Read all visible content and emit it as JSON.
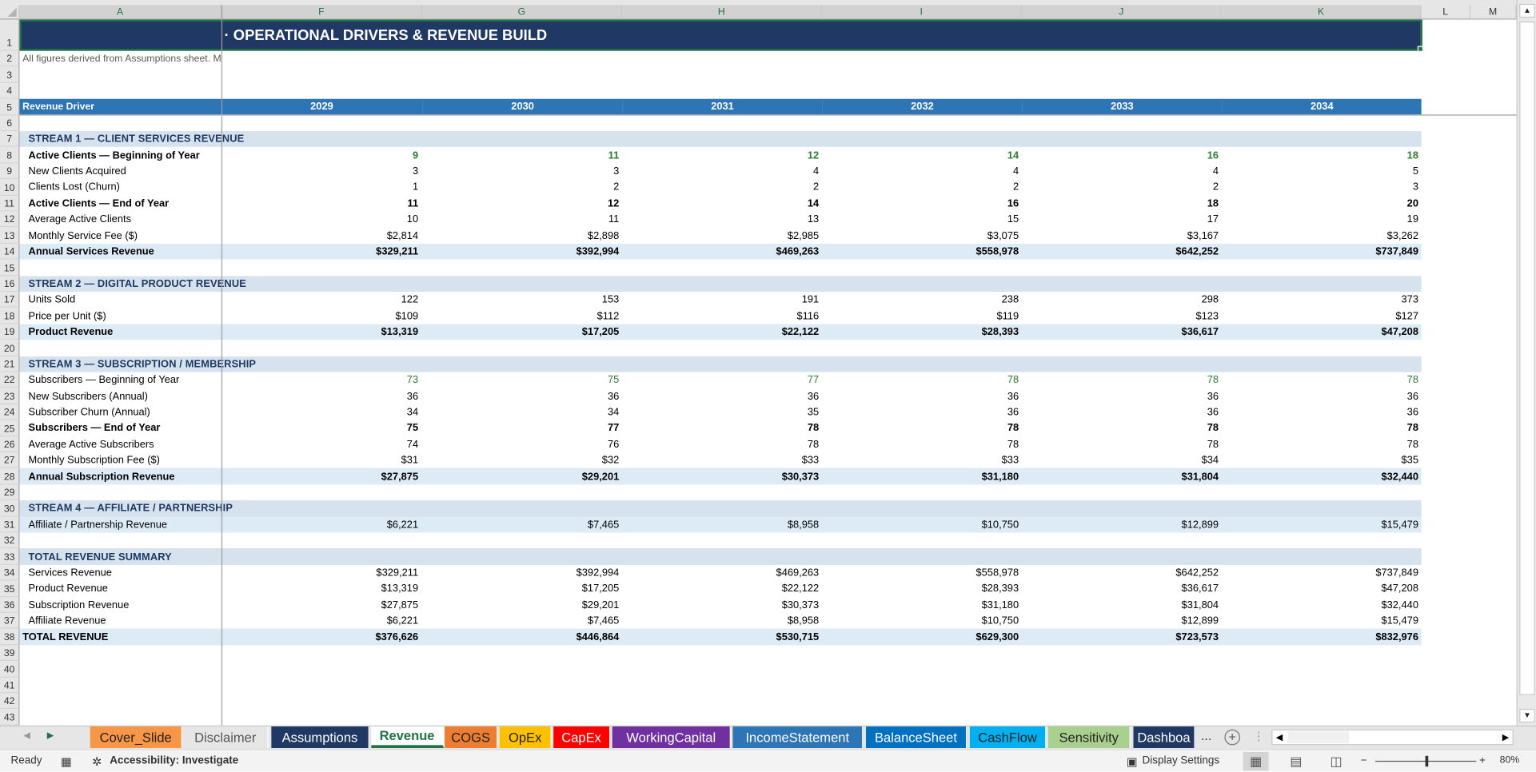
{
  "column_headers": [
    "A",
    "F",
    "G",
    "H",
    "I",
    "J",
    "K",
    "L",
    "M"
  ],
  "title": "· OPERATIONAL DRIVERS & REVENUE BUILD",
  "note": "All figures derived from Assumptions sheet. M",
  "header": {
    "label": "Revenue Driver",
    "years": [
      "2029",
      "2030",
      "2031",
      "2032",
      "2033",
      "2034"
    ]
  },
  "rows": [
    {
      "n": "1",
      "type": "title"
    },
    {
      "n": "2",
      "type": "note"
    },
    {
      "n": "3",
      "type": "empty"
    },
    {
      "n": "4",
      "type": "empty"
    },
    {
      "n": "5",
      "type": "header"
    },
    {
      "n": "6",
      "type": "empty"
    },
    {
      "n": "7",
      "type": "section",
      "label": "STREAM 1 — CLIENT SERVICES REVENUE"
    },
    {
      "n": "8",
      "type": "bold green",
      "label": "Active Clients — Beginning of Year",
      "values": [
        "9",
        "11",
        "12",
        "14",
        "16",
        "18"
      ]
    },
    {
      "n": "9",
      "type": "normal",
      "label": "New Clients Acquired",
      "values": [
        "3",
        "3",
        "4",
        "4",
        "4",
        "5"
      ]
    },
    {
      "n": "10",
      "type": "normal",
      "label": "Clients Lost (Churn)",
      "values": [
        "1",
        "2",
        "2",
        "2",
        "2",
        "3"
      ]
    },
    {
      "n": "11",
      "type": "bold",
      "label": "Active Clients — End of Year",
      "values": [
        "11",
        "12",
        "14",
        "16",
        "18",
        "20"
      ]
    },
    {
      "n": "12",
      "type": "normal",
      "label": "Average Active Clients",
      "values": [
        "10",
        "11",
        "13",
        "15",
        "17",
        "19"
      ]
    },
    {
      "n": "13",
      "type": "normal",
      "label": "Monthly Service Fee ($)",
      "values": [
        "$2,814",
        "$2,898",
        "$2,985",
        "$3,075",
        "$3,167",
        "$3,262"
      ]
    },
    {
      "n": "14",
      "type": "total",
      "label": "Annual Services Revenue",
      "values": [
        "$329,211",
        "$392,994",
        "$469,263",
        "$558,978",
        "$642,252",
        "$737,849"
      ]
    },
    {
      "n": "15",
      "type": "empty"
    },
    {
      "n": "16",
      "type": "section",
      "label": "STREAM 2 — DIGITAL PRODUCT REVENUE"
    },
    {
      "n": "17",
      "type": "normal",
      "label": "Units Sold",
      "values": [
        "122",
        "153",
        "191",
        "238",
        "298",
        "373"
      ]
    },
    {
      "n": "18",
      "type": "normal",
      "label": "Price per Unit ($)",
      "values": [
        "$109",
        "$112",
        "$116",
        "$119",
        "$123",
        "$127"
      ]
    },
    {
      "n": "19",
      "type": "total",
      "label": "Product Revenue",
      "values": [
        "$13,319",
        "$17,205",
        "$22,122",
        "$28,393",
        "$36,617",
        "$47,208"
      ]
    },
    {
      "n": "20",
      "type": "empty"
    },
    {
      "n": "21",
      "type": "section",
      "label": "STREAM 3 — SUBSCRIPTION / MEMBERSHIP"
    },
    {
      "n": "22",
      "type": "green",
      "label": "Subscribers — Beginning of Year",
      "values": [
        "73",
        "75",
        "77",
        "78",
        "78",
        "78"
      ]
    },
    {
      "n": "23",
      "type": "normal",
      "label": "New Subscribers (Annual)",
      "values": [
        "36",
        "36",
        "36",
        "36",
        "36",
        "36"
      ]
    },
    {
      "n": "24",
      "type": "normal",
      "label": "Subscriber Churn (Annual)",
      "values": [
        "34",
        "34",
        "35",
        "36",
        "36",
        "36"
      ]
    },
    {
      "n": "25",
      "type": "bold",
      "label": "Subscribers — End of Year",
      "values": [
        "75",
        "77",
        "78",
        "78",
        "78",
        "78"
      ]
    },
    {
      "n": "26",
      "type": "normal",
      "label": "Average Active Subscribers",
      "values": [
        "74",
        "76",
        "78",
        "78",
        "78",
        "78"
      ]
    },
    {
      "n": "27",
      "type": "normal",
      "label": "Monthly Subscription Fee ($)",
      "values": [
        "$31",
        "$32",
        "$33",
        "$33",
        "$34",
        "$35"
      ]
    },
    {
      "n": "28",
      "type": "total",
      "label": "Annual Subscription Revenue",
      "values": [
        "$27,875",
        "$29,201",
        "$30,373",
        "$31,180",
        "$31,804",
        "$32,440"
      ]
    },
    {
      "n": "29",
      "type": "empty"
    },
    {
      "n": "30",
      "type": "section",
      "label": "STREAM 4 — AFFILIATE / PARTNERSHIP"
    },
    {
      "n": "31",
      "type": "band",
      "label": "Affiliate / Partnership Revenue",
      "values": [
        "$6,221",
        "$7,465",
        "$8,958",
        "$10,750",
        "$12,899",
        "$15,479"
      ]
    },
    {
      "n": "32",
      "type": "empty"
    },
    {
      "n": "33",
      "type": "section",
      "label": "TOTAL REVENUE SUMMARY"
    },
    {
      "n": "34",
      "type": "normal",
      "label": "Services Revenue",
      "values": [
        "$329,211",
        "$392,994",
        "$469,263",
        "$558,978",
        "$642,252",
        "$737,849"
      ]
    },
    {
      "n": "35",
      "type": "normal",
      "label": "Product Revenue",
      "values": [
        "$13,319",
        "$17,205",
        "$22,122",
        "$28,393",
        "$36,617",
        "$47,208"
      ]
    },
    {
      "n": "36",
      "type": "normal",
      "label": "Subscription Revenue",
      "values": [
        "$27,875",
        "$29,201",
        "$30,373",
        "$31,180",
        "$31,804",
        "$32,440"
      ]
    },
    {
      "n": "37",
      "type": "normal",
      "label": "Affiliate Revenue",
      "values": [
        "$6,221",
        "$7,465",
        "$8,958",
        "$10,750",
        "$12,899",
        "$15,479"
      ]
    },
    {
      "n": "38",
      "type": "grand",
      "label": "TOTAL REVENUE",
      "values": [
        "$376,626",
        "$446,864",
        "$530,715",
        "$629,300",
        "$723,573",
        "$832,976"
      ]
    },
    {
      "n": "39",
      "type": "empty"
    },
    {
      "n": "40",
      "type": "empty"
    },
    {
      "n": "41",
      "type": "empty"
    },
    {
      "n": "42",
      "type": "empty"
    },
    {
      "n": "43",
      "type": "empty"
    }
  ],
  "tabs": [
    {
      "label": "Cover_Slide",
      "bg": "#F79646",
      "fg": "#222222"
    },
    {
      "label": "Disclaimer",
      "bg": "#E6E6E6",
      "fg": "#555555"
    },
    {
      "label": "Assumptions",
      "bg": "#1F3864",
      "fg": "#FFFFFF"
    },
    {
      "label": "Revenue",
      "bg": "#FFFFFF",
      "fg": "#217346",
      "active": true
    },
    {
      "label": "COGS",
      "bg": "#ED7D31",
      "fg": "#222222"
    },
    {
      "label": "OpEx",
      "bg": "#FFC000",
      "fg": "#222222"
    },
    {
      "label": "CapEx",
      "bg": "#FF0000",
      "fg": "#FFFFFF"
    },
    {
      "label": "WorkingCapital",
      "bg": "#7030A0",
      "fg": "#FFFFFF"
    },
    {
      "label": "IncomeStatement",
      "bg": "#2E75B6",
      "fg": "#FFFFFF"
    },
    {
      "label": "BalanceSheet",
      "bg": "#0070C0",
      "fg": "#FFFFFF"
    },
    {
      "label": "CashFlow",
      "bg": "#00B0F0",
      "fg": "#222222"
    },
    {
      "label": "Sensitivity",
      "bg": "#A9D08E",
      "fg": "#222222"
    },
    {
      "label": "Dashboa",
      "bg": "#1F3864",
      "fg": "#FFFFFF"
    }
  ],
  "tabbar": {
    "more": "...",
    "add": "+"
  },
  "status": {
    "ready": "Ready",
    "accessibility": "Accessibility: Investigate",
    "display_settings": "Display Settings",
    "zoom": "80%",
    "zoom_fraction": 0.5
  }
}
